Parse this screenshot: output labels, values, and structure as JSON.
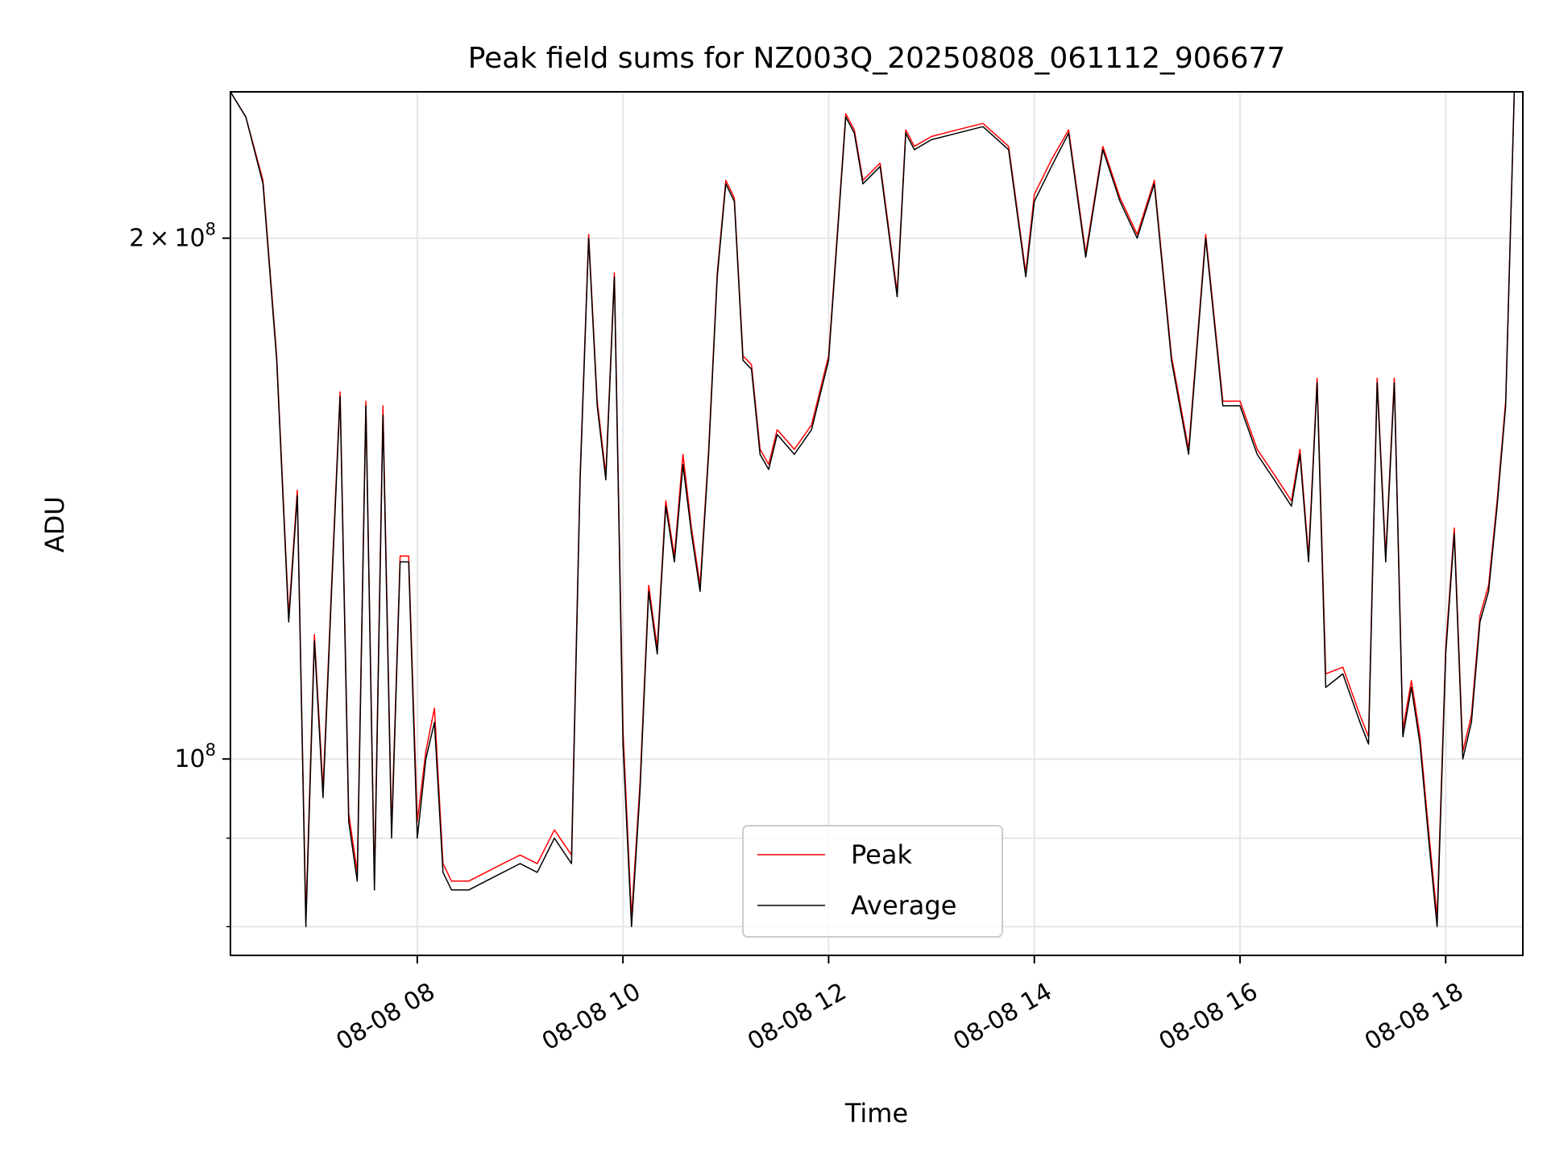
{
  "chart_data": {
    "type": "line",
    "title": "Peak field sums for NZ003Q_20250808_061112_906677",
    "xlabel": "Time",
    "ylabel": "ADU",
    "y_scale": "log",
    "ylim": [
      77000000,
      243000000
    ],
    "xlim": [
      "2025-08-08 06:11",
      "2025-08-08 18:45"
    ],
    "x_ticks": [
      "08-08 08",
      "08-08 10",
      "08-08 12",
      "08-08 14",
      "08-08 16",
      "08-08 18"
    ],
    "y_major_ticks": [
      {
        "value": 200000000,
        "mantissa": "2",
        "exponent": "8",
        "label": "2×10⁸"
      },
      {
        "value": 100000000,
        "mantissa": "",
        "exponent": "8",
        "label": "10⁸"
      }
    ],
    "y_minor_ticks": [
      80000000,
      90000000
    ],
    "grid": true,
    "legend": {
      "position": "lower-center",
      "entries": [
        {
          "name": "Peak",
          "color": "#ff0000"
        },
        {
          "name": "Average",
          "color": "#000000"
        }
      ]
    },
    "series": [
      {
        "name": "Average",
        "color": "#000000",
        "x": [
          "2025-08-08 06:11",
          "2025-08-08 06:20",
          "2025-08-08 06:30",
          "2025-08-08 06:38",
          "2025-08-08 06:45",
          "2025-08-08 06:50",
          "2025-08-08 06:55",
          "2025-08-08 07:00",
          "2025-08-08 07:05",
          "2025-08-08 07:10",
          "2025-08-08 07:15",
          "2025-08-08 07:20",
          "2025-08-08 07:25",
          "2025-08-08 07:30",
          "2025-08-08 07:35",
          "2025-08-08 07:40",
          "2025-08-08 07:45",
          "2025-08-08 07:50",
          "2025-08-08 07:55",
          "2025-08-08 08:00",
          "2025-08-08 08:05",
          "2025-08-08 08:10",
          "2025-08-08 08:15",
          "2025-08-08 08:20",
          "2025-08-08 08:25",
          "2025-08-08 08:30",
          "2025-08-08 08:40",
          "2025-08-08 08:50",
          "2025-08-08 09:00",
          "2025-08-08 09:10",
          "2025-08-08 09:20",
          "2025-08-08 09:30",
          "2025-08-08 09:35",
          "2025-08-08 09:40",
          "2025-08-08 09:45",
          "2025-08-08 09:50",
          "2025-08-08 09:55",
          "2025-08-08 10:00",
          "2025-08-08 10:05",
          "2025-08-08 10:10",
          "2025-08-08 10:15",
          "2025-08-08 10:20",
          "2025-08-08 10:25",
          "2025-08-08 10:30",
          "2025-08-08 10:35",
          "2025-08-08 10:40",
          "2025-08-08 10:45",
          "2025-08-08 10:50",
          "2025-08-08 10:55",
          "2025-08-08 11:00",
          "2025-08-08 11:05",
          "2025-08-08 11:10",
          "2025-08-08 11:15",
          "2025-08-08 11:20",
          "2025-08-08 11:25",
          "2025-08-08 11:30",
          "2025-08-08 11:40",
          "2025-08-08 11:50",
          "2025-08-08 12:00",
          "2025-08-08 12:10",
          "2025-08-08 12:15",
          "2025-08-08 12:20",
          "2025-08-08 12:30",
          "2025-08-08 12:40",
          "2025-08-08 12:45",
          "2025-08-08 12:50",
          "2025-08-08 13:00",
          "2025-08-08 13:15",
          "2025-08-08 13:30",
          "2025-08-08 13:45",
          "2025-08-08 13:55",
          "2025-08-08 14:00",
          "2025-08-08 14:10",
          "2025-08-08 14:20",
          "2025-08-08 14:30",
          "2025-08-08 14:40",
          "2025-08-08 14:50",
          "2025-08-08 15:00",
          "2025-08-08 15:10",
          "2025-08-08 15:20",
          "2025-08-08 15:30",
          "2025-08-08 15:40",
          "2025-08-08 15:50",
          "2025-08-08 16:00",
          "2025-08-08 16:10",
          "2025-08-08 16:20",
          "2025-08-08 16:30",
          "2025-08-08 16:35",
          "2025-08-08 16:40",
          "2025-08-08 16:45",
          "2025-08-08 16:50",
          "2025-08-08 17:00",
          "2025-08-08 17:10",
          "2025-08-08 17:15",
          "2025-08-08 17:20",
          "2025-08-08 17:25",
          "2025-08-08 17:30",
          "2025-08-08 17:35",
          "2025-08-08 17:40",
          "2025-08-08 17:45",
          "2025-08-08 17:50",
          "2025-08-08 17:55",
          "2025-08-08 18:00",
          "2025-08-08 18:05",
          "2025-08-08 18:10",
          "2025-08-08 18:15",
          "2025-08-08 18:20",
          "2025-08-08 18:25",
          "2025-08-08 18:30",
          "2025-08-08 18:35",
          "2025-08-08 18:40",
          "2025-08-08 18:45"
        ],
        "y": [
          243000000,
          235000000,
          215000000,
          170000000,
          120000000,
          142000000,
          80000000,
          117000000,
          95000000,
          125000000,
          162000000,
          92000000,
          85000000,
          160000000,
          84000000,
          158000000,
          90000000,
          130000000,
          130000000,
          90000000,
          100000000,
          105000000,
          86000000,
          84000000,
          84000000,
          84000000,
          85000000,
          86000000,
          87000000,
          86000000,
          90000000,
          87000000,
          145000000,
          200000000,
          160000000,
          145000000,
          190000000,
          102000000,
          80000000,
          96000000,
          125000000,
          115000000,
          140000000,
          130000000,
          148000000,
          135000000,
          125000000,
          150000000,
          190000000,
          215000000,
          210000000,
          170000000,
          168000000,
          150000000,
          147000000,
          154000000,
          150000000,
          155000000,
          170000000,
          235000000,
          230000000,
          215000000,
          220000000,
          185000000,
          230000000,
          225000000,
          228000000,
          230000000,
          232000000,
          225000000,
          190000000,
          210000000,
          220000000,
          230000000,
          195000000,
          225000000,
          210000000,
          200000000,
          215000000,
          170000000,
          150000000,
          200000000,
          160000000,
          160000000,
          150000000,
          145000000,
          140000000,
          150000000,
          130000000,
          165000000,
          110000000,
          112000000,
          105000000,
          102000000,
          165000000,
          130000000,
          165000000,
          103000000,
          110000000,
          102000000,
          90000000,
          80000000,
          115000000,
          135000000,
          100000000,
          105000000,
          120000000,
          125000000,
          140000000,
          160000000,
          243000000,
          243000000
        ]
      },
      {
        "name": "Peak",
        "color": "#ff0000",
        "x": [
          "2025-08-08 06:11",
          "2025-08-08 06:20",
          "2025-08-08 06:30",
          "2025-08-08 06:38",
          "2025-08-08 06:45",
          "2025-08-08 06:50",
          "2025-08-08 06:55",
          "2025-08-08 07:00",
          "2025-08-08 07:05",
          "2025-08-08 07:10",
          "2025-08-08 07:15",
          "2025-08-08 07:20",
          "2025-08-08 07:25",
          "2025-08-08 07:30",
          "2025-08-08 07:35",
          "2025-08-08 07:40",
          "2025-08-08 07:45",
          "2025-08-08 07:50",
          "2025-08-08 07:55",
          "2025-08-08 08:00",
          "2025-08-08 08:05",
          "2025-08-08 08:10",
          "2025-08-08 08:15",
          "2025-08-08 08:20",
          "2025-08-08 08:25",
          "2025-08-08 08:30",
          "2025-08-08 08:40",
          "2025-08-08 08:50",
          "2025-08-08 09:00",
          "2025-08-08 09:10",
          "2025-08-08 09:20",
          "2025-08-08 09:30",
          "2025-08-08 09:35",
          "2025-08-08 09:40",
          "2025-08-08 09:45",
          "2025-08-08 09:50",
          "2025-08-08 09:55",
          "2025-08-08 10:00",
          "2025-08-08 10:05",
          "2025-08-08 10:10",
          "2025-08-08 10:15",
          "2025-08-08 10:20",
          "2025-08-08 10:25",
          "2025-08-08 10:30",
          "2025-08-08 10:35",
          "2025-08-08 10:40",
          "2025-08-08 10:45",
          "2025-08-08 10:50",
          "2025-08-08 10:55",
          "2025-08-08 11:00",
          "2025-08-08 11:05",
          "2025-08-08 11:10",
          "2025-08-08 11:15",
          "2025-08-08 11:20",
          "2025-08-08 11:25",
          "2025-08-08 11:30",
          "2025-08-08 11:40",
          "2025-08-08 11:50",
          "2025-08-08 12:00",
          "2025-08-08 12:10",
          "2025-08-08 12:15",
          "2025-08-08 12:20",
          "2025-08-08 12:30",
          "2025-08-08 12:40",
          "2025-08-08 12:45",
          "2025-08-08 12:50",
          "2025-08-08 13:00",
          "2025-08-08 13:15",
          "2025-08-08 13:30",
          "2025-08-08 13:45",
          "2025-08-08 13:55",
          "2025-08-08 14:00",
          "2025-08-08 14:10",
          "2025-08-08 14:20",
          "2025-08-08 14:30",
          "2025-08-08 14:40",
          "2025-08-08 14:50",
          "2025-08-08 15:00",
          "2025-08-08 15:10",
          "2025-08-08 15:20",
          "2025-08-08 15:30",
          "2025-08-08 15:40",
          "2025-08-08 15:50",
          "2025-08-08 16:00",
          "2025-08-08 16:10",
          "2025-08-08 16:20",
          "2025-08-08 16:30",
          "2025-08-08 16:35",
          "2025-08-08 16:40",
          "2025-08-08 16:45",
          "2025-08-08 16:50",
          "2025-08-08 17:00",
          "2025-08-08 17:10",
          "2025-08-08 17:15",
          "2025-08-08 17:20",
          "2025-08-08 17:25",
          "2025-08-08 17:30",
          "2025-08-08 17:35",
          "2025-08-08 17:40",
          "2025-08-08 17:45",
          "2025-08-08 17:50",
          "2025-08-08 17:55",
          "2025-08-08 18:00",
          "2025-08-08 18:05",
          "2025-08-08 18:10",
          "2025-08-08 18:15",
          "2025-08-08 18:20",
          "2025-08-08 18:25",
          "2025-08-08 18:30",
          "2025-08-08 18:35",
          "2025-08-08 18:40",
          "2025-08-08 18:45"
        ],
        "y": [
          243000000,
          235000000,
          216000000,
          171000000,
          121000000,
          143000000,
          81000000,
          118000000,
          96000000,
          126000000,
          163000000,
          93000000,
          86000000,
          161000000,
          85000000,
          160000000,
          91000000,
          131000000,
          131000000,
          92000000,
          101000000,
          107000000,
          87000000,
          85000000,
          85000000,
          85000000,
          86000000,
          87000000,
          88000000,
          87000000,
          91000000,
          88000000,
          146000000,
          201000000,
          161000000,
          146000000,
          191000000,
          104000000,
          81000000,
          97000000,
          126000000,
          116000000,
          141000000,
          131000000,
          150000000,
          136000000,
          126000000,
          151000000,
          191000000,
          216000000,
          211000000,
          171000000,
          169000000,
          151000000,
          148000000,
          155000000,
          151000000,
          156000000,
          171000000,
          236000000,
          231000000,
          216000000,
          221000000,
          186000000,
          231000000,
          226000000,
          229000000,
          231000000,
          233000000,
          226000000,
          191000000,
          212000000,
          222000000,
          231000000,
          196000000,
          226000000,
          211000000,
          201000000,
          216000000,
          171000000,
          151000000,
          201000000,
          161000000,
          161000000,
          151000000,
          146000000,
          141000000,
          151000000,
          131000000,
          166000000,
          112000000,
          113000000,
          106000000,
          103000000,
          166000000,
          131000000,
          166000000,
          104000000,
          111000000,
          103000000,
          91000000,
          81000000,
          116000000,
          136000000,
          101000000,
          106000000,
          121000000,
          126000000,
          141000000,
          161000000,
          243000000,
          243000000
        ]
      }
    ]
  }
}
